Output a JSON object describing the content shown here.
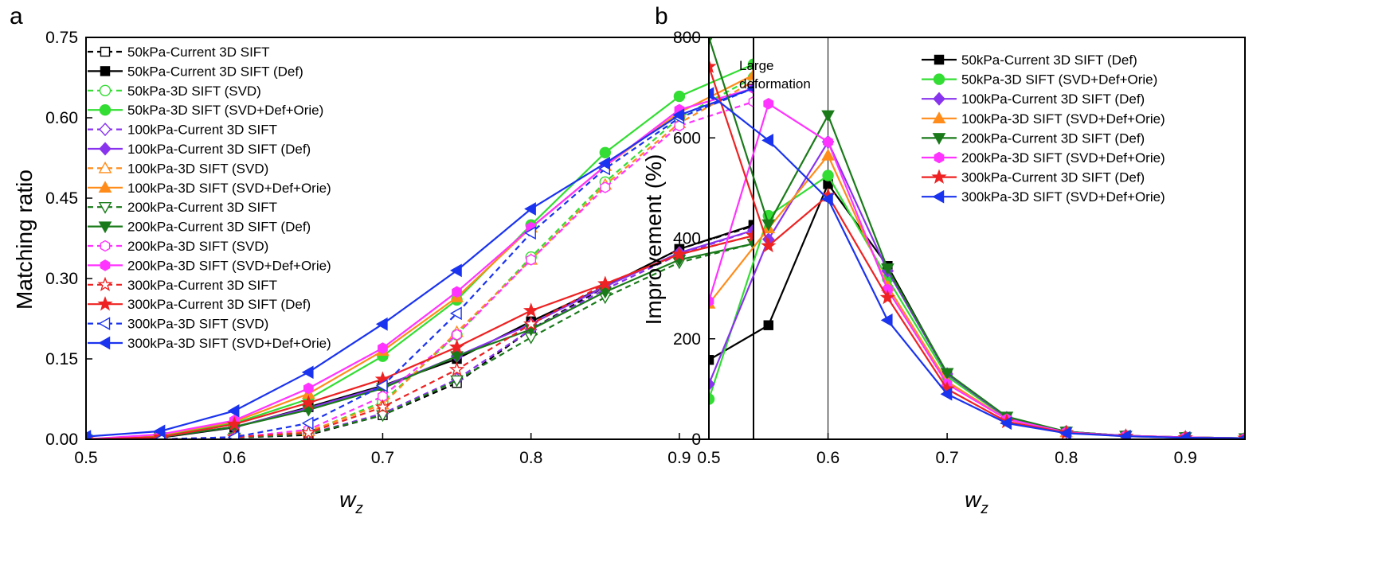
{
  "chart_data": [
    {
      "type": "line",
      "panel_label": "a",
      "xlabel": "w",
      "xlabel_sub": "z",
      "ylabel": "Matching ratio",
      "xlim": [
        0.5,
        0.95
      ],
      "ylim": [
        0,
        0.75
      ],
      "xticks": [
        "0.5",
        "0.6",
        "0.7",
        "0.8",
        "0.9"
      ],
      "yticks": [
        "0.00",
        "0.15",
        "0.30",
        "0.45",
        "0.60",
        "0.75"
      ],
      "grid": false,
      "legend_position": "top-left",
      "x": [
        0.5,
        0.55,
        0.6,
        0.65,
        0.7,
        0.75,
        0.8,
        0.85,
        0.9,
        0.95
      ],
      "series": [
        {
          "name": "50kPa-Current 3D SIFT",
          "color": "#000000",
          "marker": "square",
          "filled": false,
          "dashed": true,
          "values": [
            0.0,
            0.0,
            0.003,
            0.008,
            0.045,
            0.105,
            0.205,
            0.285,
            0.355,
            0.398
          ]
        },
        {
          "name": "50kPa-Current 3D SIFT (Def)",
          "color": "#000000",
          "marker": "square",
          "filled": true,
          "dashed": false,
          "values": [
            0.0,
            0.003,
            0.022,
            0.06,
            0.1,
            0.15,
            0.22,
            0.285,
            0.355,
            0.4
          ]
        },
        {
          "name": "50kPa-3D SIFT (SVD)",
          "color": "#33dd33",
          "marker": "circle",
          "filled": false,
          "dashed": true,
          "values": [
            0.0,
            0.0,
            0.003,
            0.013,
            0.07,
            0.195,
            0.34,
            0.48,
            0.6,
            0.675
          ]
        },
        {
          "name": "50kPa-3D SIFT (SVD+Def+Orie)",
          "color": "#33dd33",
          "marker": "circle",
          "filled": true,
          "dashed": false,
          "values": [
            0.0,
            0.007,
            0.03,
            0.075,
            0.155,
            0.26,
            0.4,
            0.535,
            0.64,
            0.7
          ]
        },
        {
          "name": "100kPa-Current 3D SIFT",
          "color": "#8833ee",
          "marker": "diamond",
          "filled": false,
          "dashed": true,
          "values": [
            0.0,
            0.0,
            0.003,
            0.01,
            0.048,
            0.112,
            0.205,
            0.28,
            0.345,
            0.39
          ]
        },
        {
          "name": "100kPa-Current 3D SIFT (Def)",
          "color": "#8833ee",
          "marker": "diamond",
          "filled": true,
          "dashed": false,
          "values": [
            0.0,
            0.004,
            0.023,
            0.058,
            0.098,
            0.155,
            0.215,
            0.285,
            0.348,
            0.39
          ]
        },
        {
          "name": "100kPa-3D SIFT (SVD)",
          "color": "#ff8c1a",
          "marker": "triangle-up",
          "filled": false,
          "dashed": true,
          "values": [
            0.0,
            0.0,
            0.003,
            0.015,
            0.065,
            0.2,
            0.335,
            0.475,
            0.59,
            0.668
          ]
        },
        {
          "name": "100kPa-3D SIFT (SVD+Def+Orie)",
          "color": "#ff8c1a",
          "marker": "triangle-up",
          "filled": true,
          "dashed": false,
          "values": [
            0.0,
            0.008,
            0.033,
            0.085,
            0.165,
            0.265,
            0.395,
            0.51,
            0.61,
            0.68
          ]
        },
        {
          "name": "200kPa-Current 3D SIFT",
          "color": "#1a7a1a",
          "marker": "triangle-down",
          "filled": false,
          "dashed": true,
          "values": [
            0.0,
            0.0,
            0.003,
            0.01,
            0.045,
            0.11,
            0.19,
            0.265,
            0.33,
            0.365
          ]
        },
        {
          "name": "200kPa-Current 3D SIFT (Def)",
          "color": "#1a7a1a",
          "marker": "triangle-down",
          "filled": true,
          "dashed": false,
          "values": [
            0.0,
            0.004,
            0.023,
            0.055,
            0.095,
            0.155,
            0.205,
            0.275,
            0.335,
            0.365
          ]
        },
        {
          "name": "200kPa-3D SIFT (SVD)",
          "color": "#ff33ff",
          "marker": "hexagon",
          "filled": false,
          "dashed": true,
          "values": [
            0.0,
            0.0,
            0.003,
            0.018,
            0.08,
            0.195,
            0.335,
            0.47,
            0.585,
            0.63
          ]
        },
        {
          "name": "200kPa-3D SIFT (SVD+Def+Orie)",
          "color": "#ff33ff",
          "marker": "hexagon",
          "filled": true,
          "dashed": false,
          "values": [
            0.0,
            0.009,
            0.035,
            0.095,
            0.17,
            0.275,
            0.395,
            0.51,
            0.615,
            0.655
          ]
        },
        {
          "name": "300kPa-Current 3D SIFT",
          "color": "#ee2222",
          "marker": "star",
          "filled": false,
          "dashed": true,
          "values": [
            0.0,
            0.0,
            0.004,
            0.012,
            0.06,
            0.13,
            0.215,
            0.29,
            0.345,
            0.38
          ]
        },
        {
          "name": "300kPa-Current 3D SIFT (Def)",
          "color": "#ee2222",
          "marker": "star",
          "filled": true,
          "dashed": false,
          "values": [
            0.0,
            0.004,
            0.028,
            0.068,
            0.112,
            0.172,
            0.24,
            0.29,
            0.345,
            0.38
          ]
        },
        {
          "name": "300kPa-3D SIFT (SVD)",
          "color": "#1a33ee",
          "marker": "triangle-left",
          "filled": false,
          "dashed": true,
          "values": [
            0.0,
            0.0,
            0.004,
            0.03,
            0.1,
            0.235,
            0.385,
            0.505,
            0.6,
            0.655
          ]
        },
        {
          "name": "300kPa-3D SIFT (SVD+Def+Orie)",
          "color": "#1a33ee",
          "marker": "triangle-left",
          "filled": true,
          "dashed": false,
          "values": [
            0.005,
            0.015,
            0.053,
            0.125,
            0.215,
            0.315,
            0.43,
            0.515,
            0.605,
            0.655
          ]
        }
      ]
    },
    {
      "type": "line",
      "panel_label": "b",
      "xlabel": "w",
      "xlabel_sub": "z",
      "ylabel": "Improvement (%)",
      "xlim": [
        0.5,
        0.95
      ],
      "ylim": [
        0,
        800
      ],
      "xticks": [
        "0.5",
        "0.6",
        "0.7",
        "0.8",
        "0.9"
      ],
      "yticks": [
        "0",
        "200",
        "400",
        "600",
        "800"
      ],
      "grid": false,
      "legend_position": "top-right",
      "reference_line_x": 0.6,
      "annotation": [
        "Large",
        "deformation"
      ],
      "x": [
        0.5,
        0.55,
        0.6,
        0.65,
        0.7,
        0.75,
        0.8,
        0.85,
        0.9,
        0.95
      ],
      "series": [
        {
          "name": "50kPa-Current 3D SIFT (Def)",
          "color": "#000000",
          "marker": "square",
          "filled": true,
          "values": [
            158,
            227,
            508,
            345,
            130,
            43,
            15,
            7,
            4,
            2
          ]
        },
        {
          "name": "50kPa-3D SIFT (SVD+Def+Orie)",
          "color": "#33dd33",
          "marker": "circle",
          "filled": true,
          "values": [
            80,
            445,
            525,
            320,
            125,
            42,
            15,
            7,
            4,
            2
          ]
        },
        {
          "name": "100kPa-Current 3D SIFT (Def)",
          "color": "#8833ee",
          "marker": "diamond",
          "filled": true,
          "values": [
            110,
            398,
            592,
            335,
            130,
            43,
            15,
            7,
            4,
            2
          ]
        },
        {
          "name": "100kPa-3D SIFT (SVD+Def+Orie)",
          "color": "#ff8c1a",
          "marker": "triangle-up",
          "filled": true,
          "values": [
            270,
            420,
            565,
            305,
            115,
            40,
            14,
            7,
            4,
            2
          ]
        },
        {
          "name": "200kPa-Current 3D SIFT (Def)",
          "color": "#1a7a1a",
          "marker": "triangle-down",
          "filled": true,
          "values": [
            800,
            428,
            645,
            340,
            132,
            45,
            15,
            7,
            4,
            2
          ]
        },
        {
          "name": "200kPa-3D SIFT (SVD+Def+Orie)",
          "color": "#ff33ff",
          "marker": "hexagon",
          "filled": true,
          "values": [
            275,
            668,
            592,
            298,
            110,
            40,
            14,
            7,
            4,
            2
          ]
        },
        {
          "name": "300kPa-Current 3D SIFT (Def)",
          "color": "#ee2222",
          "marker": "star",
          "filled": true,
          "values": [
            742,
            385,
            485,
            282,
            100,
            35,
            13,
            6,
            3,
            2
          ]
        },
        {
          "name": "300kPa-3D SIFT (SVD+Def+Orie)",
          "color": "#1a33ee",
          "marker": "triangle-left",
          "filled": true,
          "values": [
            688,
            595,
            478,
            237,
            90,
            32,
            12,
            6,
            3,
            2
          ]
        }
      ]
    }
  ]
}
